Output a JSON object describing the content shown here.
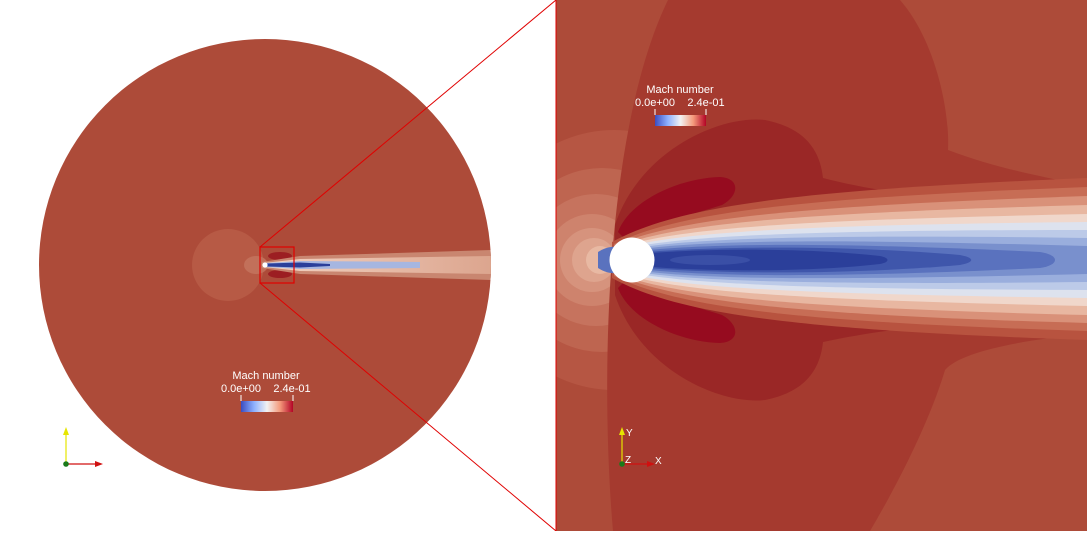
{
  "colorbar": {
    "title": "Mach number",
    "min_label": "0.0e+00",
    "max_label": "2.4e-01",
    "min_value": 0.0,
    "max_value": 0.24,
    "colors": [
      "#3b4cc0",
      "#8db0fe",
      "#f2f2f2",
      "#f49a7b",
      "#b40426"
    ]
  },
  "axes_triad": {
    "x_label": "X",
    "y_label": "Y",
    "z_label": "Z"
  },
  "colors": {
    "freestream": "#ad4b39",
    "domain_background": "#ffffff",
    "zoom_box": "#e00000",
    "wake_core": "#2b3f9a",
    "accelerated_flow": "#9d0a1f",
    "stagnation": "#e8b9a3"
  }
}
